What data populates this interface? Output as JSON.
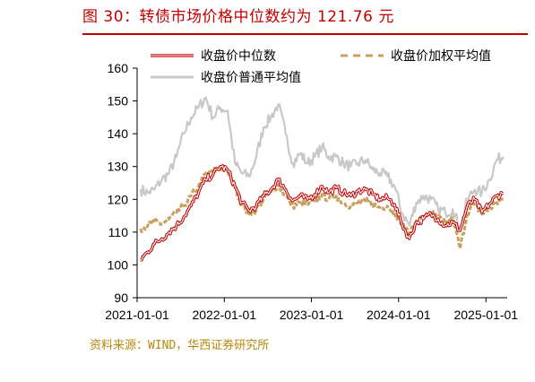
{
  "header": {
    "title": "图 30：转债市场价格中位数约为 121.76 元"
  },
  "footer": {
    "source": "资料来源：WIND，华西证券研究所"
  },
  "chart_data": {
    "type": "line",
    "title": "",
    "xlabel": "",
    "ylabel": "",
    "ylim": [
      90,
      160
    ],
    "yticks": [
      90,
      100,
      110,
      120,
      130,
      140,
      150,
      160
    ],
    "xlim": [
      "2021-01-01",
      "2025-03-31"
    ],
    "xticks": [
      "2021-01-01",
      "2022-01-01",
      "2023-01-01",
      "2024-01-01",
      "2025-01-01"
    ],
    "grid": false,
    "legend_position": "top",
    "x": [
      "2021-01",
      "2021-02",
      "2021-03",
      "2021-04",
      "2021-05",
      "2021-06",
      "2021-07",
      "2021-08",
      "2021-09",
      "2021-10",
      "2021-11",
      "2021-12",
      "2022-01",
      "2022-02",
      "2022-03",
      "2022-04",
      "2022-05",
      "2022-06",
      "2022-07",
      "2022-08",
      "2022-09",
      "2022-10",
      "2022-11",
      "2022-12",
      "2023-01",
      "2023-02",
      "2023-03",
      "2023-04",
      "2023-05",
      "2023-06",
      "2023-07",
      "2023-08",
      "2023-09",
      "2023-10",
      "2023-11",
      "2023-12",
      "2024-01",
      "2024-02",
      "2024-03",
      "2024-04",
      "2024-05",
      "2024-06",
      "2024-07",
      "2024-08",
      "2024-09",
      "2024-10",
      "2024-11",
      "2024-12",
      "2025-01",
      "2025-02",
      "2025-03"
    ],
    "series": [
      {
        "name": "收盘价中位数",
        "color": "#c00000",
        "style": "double",
        "values": [
          101.5,
          104,
          106.5,
          108,
          110,
          112,
          114.5,
          118,
          122,
          126,
          127.5,
          130,
          129,
          124,
          119,
          116.5,
          118,
          121,
          123,
          126,
          123,
          119.5,
          121,
          120,
          121.5,
          124,
          122,
          123.5,
          122,
          121,
          122.5,
          123,
          121.5,
          120,
          120.5,
          118.5,
          112.5,
          108,
          113,
          114,
          115.5,
          114,
          112,
          113,
          110.5,
          118,
          120,
          116,
          118.5,
          121,
          121.8
        ]
      },
      {
        "name": "收盘价加权平均值",
        "color": "#c8a060",
        "style": "dashed",
        "values": [
          111,
          112,
          113,
          112.5,
          114,
          116,
          118,
          121,
          124,
          128,
          128.5,
          130,
          128.5,
          123.5,
          118.5,
          115.5,
          117,
          120,
          122,
          124.5,
          121,
          118,
          119,
          118.5,
          119.5,
          121.5,
          120,
          121,
          119,
          118,
          119,
          119.5,
          118.5,
          117.5,
          118,
          116,
          113,
          109,
          113.5,
          114.5,
          116,
          114.5,
          112.5,
          114,
          105,
          116,
          118.5,
          115.5,
          117,
          119,
          120
        ]
      },
      {
        "name": "收盘价普通平均值",
        "color": "#c8c8c8",
        "style": "solid",
        "values": [
          123,
          122,
          123,
          126,
          128,
          133,
          140,
          145,
          148,
          151,
          145,
          148,
          147,
          131,
          128,
          127,
          133,
          142,
          145,
          149,
          140,
          131,
          134,
          131,
          133,
          136,
          133,
          133,
          131,
          130,
          131,
          132,
          129,
          128,
          127,
          124,
          116,
          112,
          119,
          121,
          120,
          117,
          116,
          117,
          111,
          120,
          123,
          122,
          126,
          132,
          133
        ]
      }
    ]
  }
}
